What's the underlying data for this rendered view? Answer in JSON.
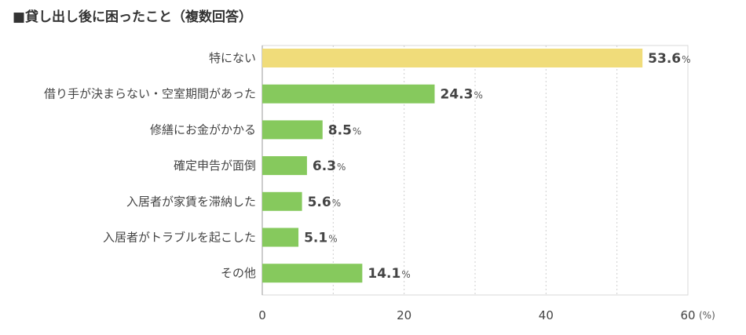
{
  "title": "■貸し出し後に困ったこと（複数回答）",
  "chart_data": {
    "type": "bar",
    "orientation": "horizontal",
    "title": "■貸し出し後に困ったこと（複数回答）",
    "categories": [
      "特にない",
      "借り手が決まらない・空室期間があった",
      "修繕にお金がかかる",
      "確定申告が面倒",
      "入居者が家賃を滞納した",
      "入居者がトラブルを起こした",
      "その他"
    ],
    "values": [
      53.6,
      24.3,
      8.5,
      6.3,
      5.6,
      5.1,
      14.1
    ],
    "value_suffix": "%",
    "xlim": [
      0,
      60
    ],
    "xticks": [
      0,
      20,
      40,
      60
    ],
    "x_unit_label": "(%)",
    "grid": true,
    "colors": {
      "highlight": "#f0dc7a",
      "default": "#86c95d"
    }
  }
}
